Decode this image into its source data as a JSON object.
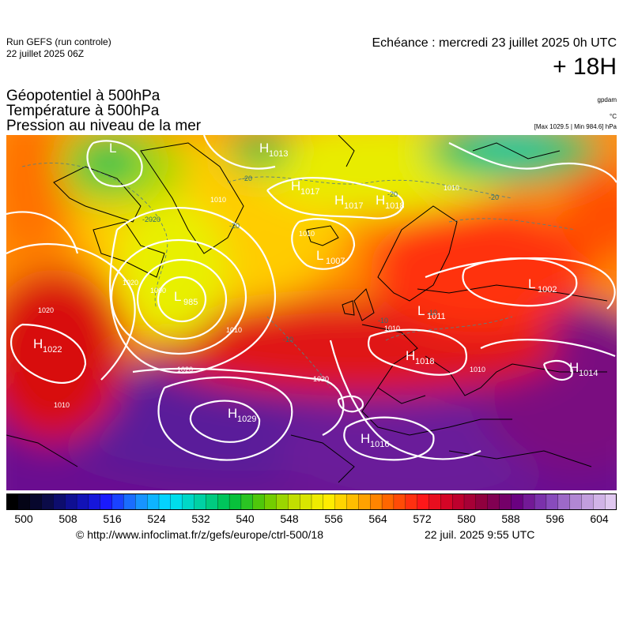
{
  "header": {
    "run_line1": "Run GEFS (run controle)",
    "run_line2": "22 juillet 2025 06Z",
    "forecast_time": "Echéance : mercredi 23 juillet 2025 0h UTC",
    "lead_time": "+ 18H"
  },
  "parameters": {
    "line1": "Géopotentiel à 500hPa",
    "line2": "Température à 500hPa",
    "line3": "Pression au niveau de la mer",
    "unit_geopotential": "gpdam",
    "unit_temperature": "°C",
    "unit_pressure": "[Max 1029.5 | Min 984.6] hPa"
  },
  "pressure_centers": [
    {
      "type": "L",
      "value": ""
    },
    {
      "type": "H",
      "value": "1013"
    },
    {
      "type": "H",
      "value": "1017"
    },
    {
      "type": "H",
      "value": "1017"
    },
    {
      "type": "H",
      "value": "1018"
    },
    {
      "type": "L",
      "value": "1007"
    },
    {
      "type": "L",
      "value": "985"
    },
    {
      "type": "H",
      "value": "1022"
    },
    {
      "type": "H",
      "value": "1029"
    },
    {
      "type": "H",
      "value": "1018"
    },
    {
      "type": "H",
      "value": "1016"
    },
    {
      "type": "L",
      "value": "1002"
    },
    {
      "type": "H",
      "value": "1014"
    },
    {
      "type": "L",
      "value": "1011"
    }
  ],
  "isobar_labels": [
    "1010",
    "1010",
    "1010",
    "1000",
    "1020",
    "1020",
    "1010",
    "1010",
    "1020",
    "1010",
    "1010",
    "1020"
  ],
  "temperature_labels": [
    "-20",
    "-20",
    "-20",
    "-20",
    "-20",
    "-10",
    "-10",
    "-10",
    "-20"
  ],
  "colorbar": {
    "unit": "gpdam",
    "min": 500,
    "max": 604,
    "step": 2,
    "labels": [
      "500",
      "508",
      "516",
      "524",
      "532",
      "540",
      "548",
      "556",
      "564",
      "572",
      "580",
      "588",
      "596",
      "604"
    ],
    "stops": [
      "#000000",
      "#0a0a3c",
      "#1010a0",
      "#1a1aff",
      "#1a8cff",
      "#00e0ff",
      "#00d0a0",
      "#00c040",
      "#60c800",
      "#c8e000",
      "#fff000",
      "#ffb000",
      "#ff6000",
      "#ff1818",
      "#c8002a",
      "#8a0040",
      "#6a0080",
      "#8040b8",
      "#b890d8",
      "#e0c8f0"
    ]
  },
  "colors": {
    "isobar": "#ffffff",
    "coastline": "#000000",
    "temperature_isotherm": "#5a8080"
  },
  "footer": {
    "credit": "© http://www.infoclimat.fr/z/gefs/europe/ctrl-500/18",
    "timestamp": "22 juil. 2025  9:55 UTC"
  }
}
